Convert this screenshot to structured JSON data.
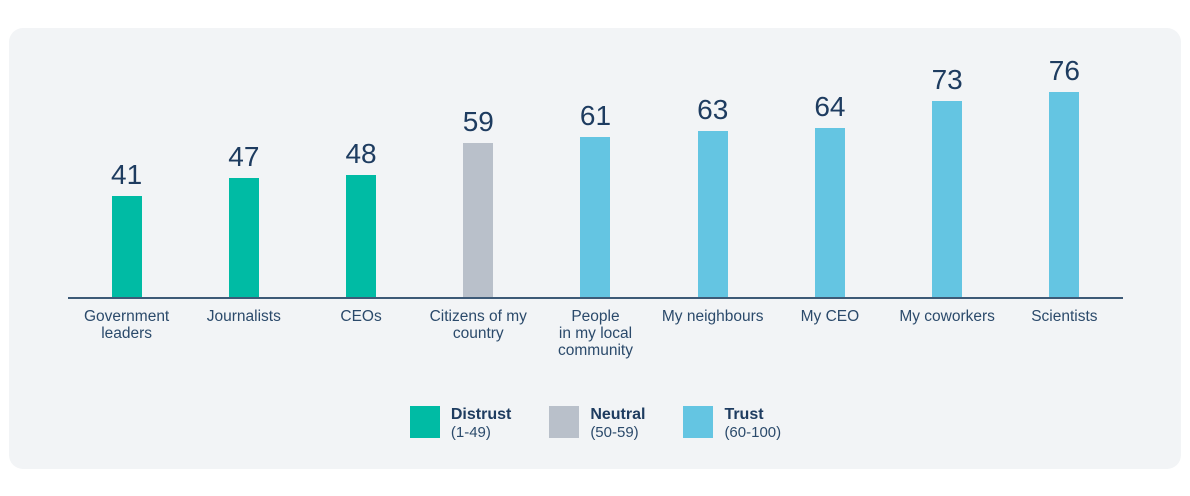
{
  "page": {
    "background": "#ffffff",
    "card_background": "#f2f4f6"
  },
  "chart_data": {
    "type": "bar",
    "title": "",
    "xlabel": "",
    "ylabel": "",
    "categories": [
      "Government leaders",
      "Journalists",
      "CEOs",
      "Citizens of my country",
      "People in my local community",
      "My neighbours",
      "My CEO",
      "My coworkers",
      "Scientists"
    ],
    "category_label_lines": [
      [
        "Government",
        "leaders"
      ],
      [
        "Journalists"
      ],
      [
        "CEOs"
      ],
      [
        "Citizens of my",
        "country"
      ],
      [
        "People",
        "in my local",
        "community"
      ],
      [
        "My neighbours"
      ],
      [
        "My CEO"
      ],
      [
        "My coworkers"
      ],
      [
        "Scientists"
      ]
    ],
    "values": [
      41,
      47,
      48,
      59,
      61,
      63,
      64,
      73,
      76
    ],
    "bar_sentiments": [
      "distrust",
      "distrust",
      "distrust",
      "neutral",
      "trust",
      "trust",
      "trust",
      "trust",
      "trust"
    ],
    "value_labels_shown": true,
    "ylim": [
      0,
      100
    ],
    "grid": false,
    "axis_line": "x-only",
    "legend_position": "bottom-center"
  },
  "legend": {
    "items": [
      {
        "key": "distrust",
        "label": "Distrust",
        "range": "(1-49)",
        "color": "#00bba4"
      },
      {
        "key": "neutral",
        "label": "Neutral",
        "range": "(50-59)",
        "color": "#b9c0ca"
      },
      {
        "key": "trust",
        "label": "Trust",
        "range": "(60-100)",
        "color": "#64c5e2"
      }
    ]
  },
  "colors": {
    "distrust": "#00bba4",
    "neutral": "#b9c0ca",
    "trust": "#64c5e2",
    "value_text": "#1e3c60",
    "label_text": "#2b4a6b",
    "axis": "#3d5a77"
  }
}
